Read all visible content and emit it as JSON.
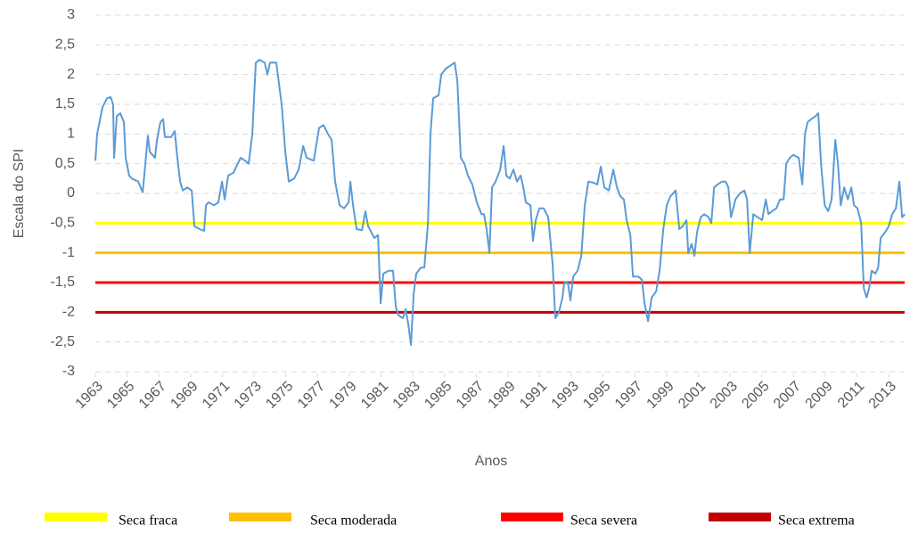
{
  "chart_data": {
    "type": "line",
    "y_label": "Escala do SPI",
    "x_label": "Anos",
    "color": "#5b9bd5",
    "xlim": [
      1963,
      2014
    ],
    "xticks": [
      1963,
      1965,
      1967,
      1969,
      1971,
      1973,
      1975,
      1977,
      1979,
      1981,
      1983,
      1985,
      1987,
      1989,
      1991,
      1993,
      1995,
      1997,
      1999,
      2001,
      2003,
      2005,
      2007,
      2009,
      2011,
      2013
    ],
    "ylim": [
      -3,
      3
    ],
    "yticks": [
      {
        "value": -3,
        "label": "-3"
      },
      {
        "value": -2.5,
        "label": "-2,5"
      },
      -2,
      {
        "value": -1.5,
        "label": "-1,5"
      },
      -1,
      {
        "value": -0.5,
        "label": "-0,5"
      },
      0,
      {
        "value": 0.5,
        "label": "0,5"
      },
      1,
      {
        "value": 1.5,
        "label": "1,5"
      },
      2,
      {
        "value": 2.5,
        "label": "2,5"
      },
      3
    ],
    "grid": true,
    "reference_lines": [
      {
        "name": "Seca fraca",
        "color": "#ffff00",
        "value": -0.5
      },
      {
        "name": "Seca moderada",
        "color": "#ffc000",
        "value": -1
      },
      {
        "name": "Seca severa",
        "color": "#ff0000",
        "value": -1.5
      },
      {
        "name": "Seca extrema",
        "color": "#c00000",
        "value": -2
      }
    ],
    "x": [
      1963.0,
      1963.11,
      1963.45,
      1963.73,
      1963.96,
      1964.12,
      1964.18,
      1964.35,
      1964.57,
      1964.8,
      1964.91,
      1965.13,
      1965.3,
      1965.7,
      1965.98,
      1966.15,
      1966.31,
      1966.43,
      1966.76,
      1966.88,
      1967.1,
      1967.27,
      1967.38,
      1967.78,
      1968.0,
      1968.17,
      1968.34,
      1968.51,
      1968.79,
      1969.07,
      1969.24,
      1969.57,
      1969.85,
      1969.97,
      1970.13,
      1970.47,
      1970.75,
      1970.98,
      1971.15,
      1971.37,
      1971.71,
      1971.88,
      1972.16,
      1972.44,
      1972.66,
      1972.89,
      1973.11,
      1973.34,
      1973.67,
      1973.84,
      1974.01,
      1974.4,
      1974.74,
      1974.97,
      1975.19,
      1975.53,
      1975.81,
      1976.09,
      1976.31,
      1976.76,
      1977.1,
      1977.38,
      1977.66,
      1977.89,
      1978.11,
      1978.39,
      1978.67,
      1978.96,
      1979.07,
      1979.24,
      1979.46,
      1979.8,
      1980.02,
      1980.19,
      1980.58,
      1980.81,
      1980.98,
      1981.15,
      1981.48,
      1981.76,
      1981.93,
      1982.1,
      1982.38,
      1982.55,
      1982.72,
      1982.89,
      1983.06,
      1983.22,
      1983.51,
      1983.73,
      1983.96,
      1984.12,
      1984.29,
      1984.63,
      1984.8,
      1985.08,
      1985.36,
      1985.64,
      1985.81,
      1986.03,
      1986.26,
      1986.48,
      1986.76,
      1987.04,
      1987.33,
      1987.49,
      1987.66,
      1987.83,
      1988.0,
      1988.22,
      1988.51,
      1988.73,
      1988.9,
      1989.12,
      1989.35,
      1989.57,
      1989.8,
      1989.97,
      1990.13,
      1990.42,
      1990.58,
      1990.75,
      1990.98,
      1991.26,
      1991.54,
      1991.82,
      1991.99,
      1992.21,
      1992.44,
      1992.55,
      1992.78,
      1992.94,
      1993.11,
      1993.39,
      1993.62,
      1993.84,
      1994.07,
      1994.4,
      1994.63,
      1994.85,
      1995.08,
      1995.36,
      1995.64,
      1995.87,
      1996.09,
      1996.31,
      1996.48,
      1996.71,
      1996.88,
      1997.21,
      1997.44,
      1997.61,
      1997.83,
      1998.06,
      1998.34,
      1998.56,
      1998.79,
      1999.01,
      1999.24,
      1999.57,
      1999.8,
      2000.02,
      2000.25,
      2000.36,
      2000.58,
      2000.75,
      2000.92,
      2001.15,
      2001.37,
      2001.65,
      2001.82,
      2001.99,
      2002.21,
      2002.49,
      2002.72,
      2002.89,
      2003.06,
      2003.34,
      2003.62,
      2003.9,
      2004.07,
      2004.24,
      2004.46,
      2004.74,
      2005.02,
      2005.25,
      2005.42,
      2005.64,
      2005.92,
      2006.15,
      2006.37,
      2006.54,
      2006.76,
      2006.99,
      2007.33,
      2007.55,
      2007.72,
      2007.89,
      2008.11,
      2008.39,
      2008.56,
      2008.73,
      2008.96,
      2009.18,
      2009.4,
      2009.63,
      2009.8,
      2009.97,
      2010.19,
      2010.42,
      2010.64,
      2010.81,
      2011.03,
      2011.26,
      2011.43,
      2011.6,
      2011.76,
      2011.93,
      2012.16,
      2012.33,
      2012.49,
      2012.78,
      2013.0,
      2013.22,
      2013.45,
      2013.67,
      2013.84,
      2014.01
    ],
    "values": [
      0.55,
      1.0,
      1.45,
      1.6,
      1.62,
      1.5,
      0.6,
      1.3,
      1.35,
      1.2,
      0.6,
      0.3,
      0.25,
      0.2,
      0.02,
      0.5,
      0.97,
      0.7,
      0.6,
      0.9,
      1.2,
      1.25,
      0.95,
      0.95,
      1.05,
      0.6,
      0.2,
      0.05,
      0.1,
      0.05,
      -0.55,
      -0.6,
      -0.63,
      -0.2,
      -0.15,
      -0.2,
      -0.15,
      0.2,
      -0.1,
      0.3,
      0.35,
      0.45,
      0.6,
      0.55,
      0.5,
      1.0,
      2.2,
      2.25,
      2.2,
      2.0,
      2.2,
      2.2,
      1.5,
      0.7,
      0.2,
      0.25,
      0.4,
      0.8,
      0.6,
      0.55,
      1.1,
      1.15,
      1.0,
      0.9,
      0.2,
      -0.2,
      -0.25,
      -0.15,
      0.2,
      -0.2,
      -0.6,
      -0.62,
      -0.3,
      -0.55,
      -0.75,
      -0.7,
      -1.85,
      -1.35,
      -1.3,
      -1.3,
      -1.9,
      -2.05,
      -2.1,
      -1.95,
      -2.2,
      -2.55,
      -1.7,
      -1.35,
      -1.25,
      -1.25,
      -0.5,
      1.0,
      1.6,
      1.65,
      2.0,
      2.1,
      2.15,
      2.2,
      1.9,
      0.6,
      0.5,
      0.3,
      0.15,
      -0.15,
      -0.35,
      -0.35,
      -0.6,
      -1.0,
      0.1,
      0.2,
      0.4,
      0.8,
      0.3,
      0.25,
      0.4,
      0.2,
      0.3,
      0.1,
      -0.15,
      -0.2,
      -0.8,
      -0.45,
      -0.25,
      -0.25,
      -0.4,
      -1.2,
      -2.1,
      -2.0,
      -1.75,
      -1.5,
      -1.5,
      -1.8,
      -1.4,
      -1.3,
      -1.05,
      -0.2,
      0.2,
      0.18,
      0.15,
      0.45,
      0.1,
      0.05,
      0.4,
      0.1,
      -0.05,
      -0.1,
      -0.45,
      -0.7,
      -1.4,
      -1.4,
      -1.45,
      -1.85,
      -2.15,
      -1.75,
      -1.65,
      -1.3,
      -0.6,
      -0.2,
      -0.05,
      0.05,
      -0.6,
      -0.55,
      -0.45,
      -1.0,
      -0.85,
      -1.05,
      -0.65,
      -0.4,
      -0.35,
      -0.4,
      -0.5,
      0.1,
      0.15,
      0.2,
      0.2,
      0.1,
      -0.4,
      -0.1,
      0.0,
      0.05,
      -0.1,
      -1.0,
      -0.35,
      -0.4,
      -0.45,
      -0.1,
      -0.35,
      -0.3,
      -0.25,
      -0.1,
      -0.1,
      0.5,
      0.6,
      0.65,
      0.6,
      0.15,
      1.0,
      1.2,
      1.25,
      1.3,
      1.35,
      0.5,
      -0.2,
      -0.3,
      -0.1,
      0.9,
      0.5,
      -0.2,
      0.1,
      -0.1,
      0.1,
      -0.2,
      -0.25,
      -0.5,
      -1.6,
      -1.75,
      -1.6,
      -1.3,
      -1.35,
      -1.25,
      -0.75,
      -0.65,
      -0.55,
      -0.35,
      -0.25,
      0.2,
      -0.4,
      -0.35
    ]
  }
}
